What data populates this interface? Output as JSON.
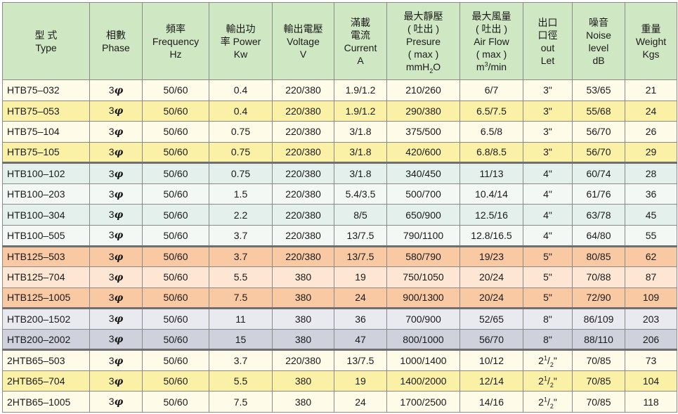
{
  "headers": [
    {
      "key": "type",
      "lines": [
        "型 式",
        "Type"
      ]
    },
    {
      "key": "phase",
      "lines": [
        "相數",
        "Phase"
      ]
    },
    {
      "key": "freq",
      "lines": [
        "頻率",
        "Frequency",
        "Hz"
      ]
    },
    {
      "key": "power",
      "lines": [
        "輸出功",
        "率 Power",
        "Kw"
      ]
    },
    {
      "key": "voltage",
      "lines": [
        "輸出電壓",
        "Voltage",
        "V"
      ]
    },
    {
      "key": "current",
      "lines": [
        "滿載",
        "電流",
        "Current",
        "A"
      ]
    },
    {
      "key": "pressure",
      "lines": [
        "最大靜壓",
        "( 吐出 )",
        "Presure",
        "( max )"
      ],
      "unit_main": "mmH",
      "unit_sub": "2",
      "unit_tail": "O"
    },
    {
      "key": "airflow",
      "lines": [
        "最大風量",
        "( 吐出 )",
        "Air Flow",
        "( max )"
      ],
      "unit_main": "m",
      "unit_sup": "3",
      "unit_tail": "/min"
    },
    {
      "key": "outlet",
      "lines": [
        "出口",
        "口徑",
        "out",
        "Let"
      ]
    },
    {
      "key": "noise",
      "lines": [
        "噪音",
        "Noise",
        "level",
        "dB"
      ]
    },
    {
      "key": "weight",
      "lines": [
        "重量",
        "Weight",
        "Kgs"
      ]
    }
  ],
  "phase_value": "3",
  "phase_symbol": "φ",
  "rows": [
    {
      "model": "HTB75–032",
      "freq": "50/60",
      "power": "0.4",
      "voltage": "220/380",
      "current": "1.9/1.2",
      "pressure": "210/260",
      "airflow": "6/7",
      "outlet": "3\"",
      "noise": "53/65",
      "weight": "21"
    },
    {
      "model": "HTB75–053",
      "freq": "50/60",
      "power": "0.4",
      "voltage": "220/380",
      "current": "1.9/1.2",
      "pressure": "290/380",
      "airflow": "6.5/7.5",
      "outlet": "3\"",
      "noise": "55/68",
      "weight": "24"
    },
    {
      "model": "HTB75–104",
      "freq": "50/60",
      "power": "0.75",
      "voltage": "220/380",
      "current": "3/1.8",
      "pressure": "375/500",
      "airflow": "6.5/8",
      "outlet": "3\"",
      "noise": "56/70",
      "weight": "26"
    },
    {
      "model": "HTB75–105",
      "freq": "50/60",
      "power": "0.75",
      "voltage": "220/380",
      "current": "3/1.8",
      "pressure": "420/600",
      "airflow": "6.8/8.5",
      "outlet": "3\"",
      "noise": "56/70",
      "weight": "29"
    },
    {
      "model": "HTB100–102",
      "freq": "50/60",
      "power": "0.75",
      "voltage": "220/380",
      "current": "3/1.8",
      "pressure": "340/450",
      "airflow": "11/13",
      "outlet": "4\"",
      "noise": "60/74",
      "weight": "28"
    },
    {
      "model": "HTB100–203",
      "freq": "50/60",
      "power": "1.5",
      "voltage": "220/380",
      "current": "5.4/3.5",
      "pressure": "500/700",
      "airflow": "10.4/14",
      "outlet": "4\"",
      "noise": "61/76",
      "weight": "36"
    },
    {
      "model": "HTB100–304",
      "freq": "50/60",
      "power": "2.2",
      "voltage": "220/380",
      "current": "8/5",
      "pressure": "650/900",
      "airflow": "12.5/16",
      "outlet": "4\"",
      "noise": "63/78",
      "weight": "45"
    },
    {
      "model": "HTB100–505",
      "freq": "50/60",
      "power": "3.7",
      "voltage": "220/380",
      "current": "13/7.5",
      "pressure": "790/1100",
      "airflow": "12.8/16.5",
      "outlet": "4\"",
      "noise": "64/80",
      "weight": "55"
    },
    {
      "model": "HTB125–503",
      "freq": "50/60",
      "power": "3.7",
      "voltage": "220/380",
      "current": "13/7.5",
      "pressure": "580/790",
      "airflow": "19/23",
      "outlet": "5\"",
      "noise": "80/85",
      "weight": "62"
    },
    {
      "model": "HTB125–704",
      "freq": "50/60",
      "power": "5.5",
      "voltage": "380",
      "current": "19",
      "pressure": "750/1050",
      "airflow": "20/24",
      "outlet": "5\"",
      "noise": "70/88",
      "weight": "87"
    },
    {
      "model": "HTB125–1005",
      "freq": "50/60",
      "power": "7.5",
      "voltage": "380",
      "current": "24",
      "pressure": "900/1300",
      "airflow": "20/24",
      "outlet": "5\"",
      "noise": "72/90",
      "weight": "109"
    },
    {
      "model": "HTB200–1502",
      "freq": "50/60",
      "power": "11",
      "voltage": "380",
      "current": "36",
      "pressure": "700/900",
      "airflow": "52/65",
      "outlet": "8\"",
      "noise": "86/109",
      "weight": "203"
    },
    {
      "model": "HTB200–2002",
      "freq": "50/60",
      "power": "15",
      "voltage": "380",
      "current": "47",
      "pressure": "800/1000",
      "airflow": "56/70",
      "outlet": "8\"",
      "noise": "88/110",
      "weight": "206"
    },
    {
      "model": "2HTB65–503",
      "freq": "50/60",
      "power": "3.7",
      "voltage": "220/380",
      "current": "13/7.5",
      "pressure": "1000/1400",
      "airflow": "10/12",
      "outlet": "",
      "noise": "70/85",
      "weight": "73"
    },
    {
      "model": "2HTB65–704",
      "freq": "50/60",
      "power": "5.5",
      "voltage": "380",
      "current": "19",
      "pressure": "1400/2000",
      "airflow": "12/14",
      "outlet": "",
      "noise": "70/85",
      "weight": "104"
    },
    {
      "model": "2HTB65–1005",
      "freq": "50/60",
      "power": "7.5",
      "voltage": "380",
      "current": "24",
      "pressure": "1700/2500",
      "airflow": "14/16",
      "outlet": "",
      "noise": "70/85",
      "weight": "118"
    }
  ],
  "outlet_fraction": {
    "whole": "2",
    "num": "1",
    "den": "2",
    "mark": "\""
  },
  "row_styles": [
    "g1a",
    "g1b",
    "g1a",
    "g1b",
    "g2a",
    "g2b",
    "g2a",
    "g2b",
    "g3a",
    "g3b",
    "g3a",
    "g4a",
    "g4b",
    "g5a",
    "g5b",
    "g5a"
  ],
  "group_starts": [
    0,
    4,
    8,
    11,
    13
  ]
}
